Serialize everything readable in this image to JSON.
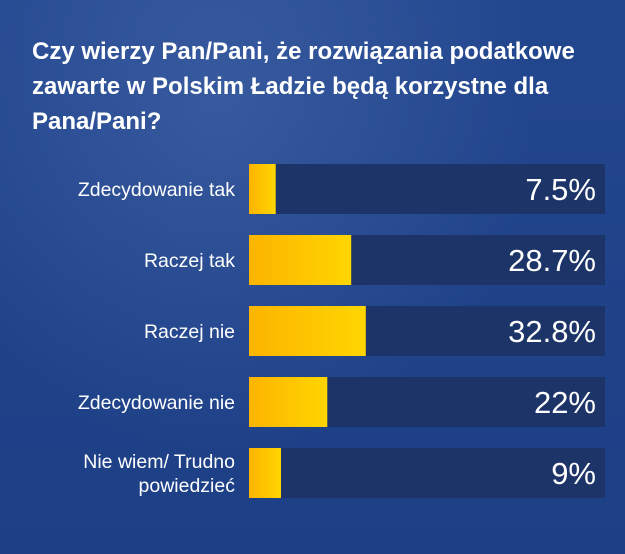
{
  "chart_data": {
    "type": "bar",
    "orientation": "horizontal",
    "title": "Czy wierzy Pan/Pani, że rozwiązania podatkowe zawarte w Polskim Ładzie będą korzystne dla Pana/Pani?",
    "categories": [
      [
        "Zdecydowanie tak"
      ],
      [
        "Raczej tak"
      ],
      [
        "Raczej nie"
      ],
      [
        "Zdecydowanie nie"
      ],
      [
        "Nie wiem/ Trudno",
        "powiedzieć"
      ]
    ],
    "values": [
      7.5,
      28.7,
      32.8,
      22,
      9
    ],
    "value_labels": [
      "7.5%",
      "28.7%",
      "32.8%",
      "22%",
      "9%"
    ],
    "xlim": [
      0,
      100
    ],
    "grid": false,
    "colors": {
      "bar_start": "#fcb400",
      "bar_end": "#ffd500",
      "track": "#1c3468",
      "background": "#214591"
    }
  }
}
